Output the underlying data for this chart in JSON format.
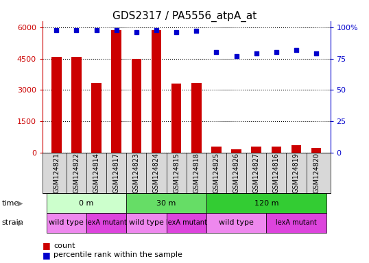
{
  "title": "GDS2317 / PA5556_atpA_at",
  "samples": [
    "GSM124821",
    "GSM124822",
    "GSM124814",
    "GSM124817",
    "GSM124823",
    "GSM124824",
    "GSM124815",
    "GSM124818",
    "GSM124825",
    "GSM124826",
    "GSM124827",
    "GSM124816",
    "GSM124819",
    "GSM124820"
  ],
  "counts": [
    4600,
    4600,
    3350,
    5850,
    4500,
    5850,
    3300,
    3350,
    280,
    150,
    280,
    280,
    350,
    230
  ],
  "percentile_ranks": [
    98,
    98,
    98,
    98,
    96,
    98,
    96,
    97,
    80,
    77,
    79,
    80,
    82,
    79
  ],
  "left_yaxis_ticks": [
    0,
    1500,
    3000,
    4500,
    6000
  ],
  "left_yaxis_color": "#cc0000",
  "right_yaxis_ticks": [
    0,
    25,
    50,
    75,
    100
  ],
  "right_yaxis_color": "#0000cc",
  "left_ylim": [
    0,
    6300
  ],
  "right_ylim": [
    0,
    105
  ],
  "bar_color": "#cc0000",
  "dot_color": "#0000cc",
  "bg_color": "#ffffff",
  "grid_color": "#000000",
  "time_groups": [
    {
      "label": "0 m",
      "start": 0,
      "end": 4,
      "color": "#ccffcc"
    },
    {
      "label": "30 m",
      "start": 4,
      "end": 8,
      "color": "#66dd66"
    },
    {
      "label": "120 m",
      "start": 8,
      "end": 14,
      "color": "#33cc33"
    }
  ],
  "strain_groups": [
    {
      "label": "wild type",
      "start": 0,
      "end": 2,
      "color": "#ee88ee"
    },
    {
      "label": "lexA mutant",
      "start": 2,
      "end": 4,
      "color": "#dd44dd"
    },
    {
      "label": "wild type",
      "start": 4,
      "end": 6,
      "color": "#ee88ee"
    },
    {
      "label": "lexA mutant",
      "start": 6,
      "end": 8,
      "color": "#dd44dd"
    },
    {
      "label": "wild type",
      "start": 8,
      "end": 11,
      "color": "#ee88ee"
    },
    {
      "label": "lexA mutant",
      "start": 11,
      "end": 14,
      "color": "#dd44dd"
    }
  ],
  "xlabel_fontsize": 7,
  "title_fontsize": 11,
  "tick_fontsize": 8,
  "bar_width": 0.5,
  "xtick_bg_color": "#d8d8d8"
}
